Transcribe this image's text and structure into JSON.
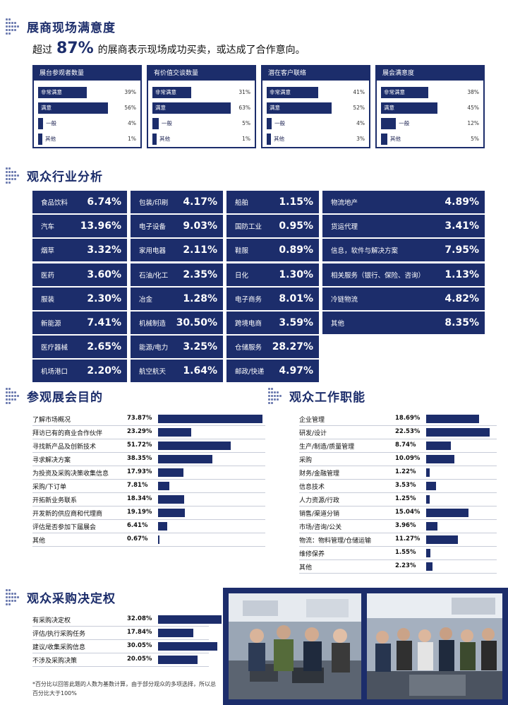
{
  "sections": {
    "satisfaction": "展商现场满意度",
    "industry": "观众行业分析",
    "purpose": "参观展会目的",
    "job": "观众工作职能",
    "decision": "观众采购决定权"
  },
  "subtitle": {
    "pre": "超过",
    "big": "87%",
    "post": "的展商表示现场成功买卖，或达成了合作意向。"
  },
  "satisfaction_boxes": [
    {
      "title": "展台参观者数量",
      "rows": [
        {
          "label": "非常满意",
          "pct": "39%",
          "value": 39
        },
        {
          "label": "满意",
          "pct": "56%",
          "value": 56
        },
        {
          "label": "一般",
          "pct": "4%",
          "value": 4
        },
        {
          "label": "其他",
          "pct": "1%",
          "value": 1
        }
      ]
    },
    {
      "title": "有价值交谈数量",
      "rows": [
        {
          "label": "非常满意",
          "pct": "31%",
          "value": 31
        },
        {
          "label": "满意",
          "pct": "63%",
          "value": 63
        },
        {
          "label": "一般",
          "pct": "5%",
          "value": 5
        },
        {
          "label": "其他",
          "pct": "1%",
          "value": 1
        }
      ]
    },
    {
      "title": "潜在客户联络",
      "rows": [
        {
          "label": "非常满意",
          "pct": "41%",
          "value": 41
        },
        {
          "label": "满意",
          "pct": "52%",
          "value": 52
        },
        {
          "label": "一般",
          "pct": "4%",
          "value": 4
        },
        {
          "label": "其他",
          "pct": "3%",
          "value": 3
        }
      ]
    },
    {
      "title": "展会满意度",
      "rows": [
        {
          "label": "非常满意",
          "pct": "38%",
          "value": 38
        },
        {
          "label": "满意",
          "pct": "45%",
          "value": 45
        },
        {
          "label": "一般",
          "pct": "12%",
          "value": 12
        },
        {
          "label": "其他",
          "pct": "5%",
          "value": 5
        }
      ]
    }
  ],
  "industry_columns": [
    [
      {
        "label": "食品饮料",
        "value": "6.74%"
      },
      {
        "label": "汽车",
        "value": "13.96%"
      },
      {
        "label": "烟草",
        "value": "3.32%"
      },
      {
        "label": "医药",
        "value": "3.60%"
      },
      {
        "label": "服装",
        "value": "2.30%"
      },
      {
        "label": "新能源",
        "value": "7.41%"
      },
      {
        "label": "医疗器械",
        "value": "2.65%"
      },
      {
        "label": "机场港口",
        "value": "2.20%"
      }
    ],
    [
      {
        "label": "包装/印刷",
        "value": "4.17%"
      },
      {
        "label": "电子设备",
        "value": "9.03%"
      },
      {
        "label": "家用电器",
        "value": "2.11%"
      },
      {
        "label": "石油/化工",
        "value": "2.35%"
      },
      {
        "label": "冶金",
        "value": "1.28%"
      },
      {
        "label": "机械制造",
        "value": "30.50%"
      },
      {
        "label": "能源/电力",
        "value": "3.25%"
      },
      {
        "label": "航空航天",
        "value": "1.64%"
      }
    ],
    [
      {
        "label": "船舶",
        "value": "1.15%"
      },
      {
        "label": "国防工业",
        "value": "0.95%"
      },
      {
        "label": "鞋服",
        "value": "0.89%"
      },
      {
        "label": "日化",
        "value": "1.30%"
      },
      {
        "label": "电子商务",
        "value": "8.01%"
      },
      {
        "label": "跨境电商",
        "value": "3.59%"
      },
      {
        "label": "仓储服务",
        "value": "28.27%"
      },
      {
        "label": "邮政/快递",
        "value": "4.97%"
      }
    ],
    [
      {
        "label": "物流地产",
        "value": "4.89%"
      },
      {
        "label": "货运代理",
        "value": "3.41%"
      },
      {
        "label": "信息，软件与解决方案",
        "value": "7.95%"
      },
      {
        "label": "相关服务（银行、保险、咨询）",
        "value": "1.13%"
      },
      {
        "label": "冷链物流",
        "value": "4.82%"
      },
      {
        "label": "其他",
        "value": "8.35%"
      }
    ]
  ],
  "purpose": [
    {
      "label": "了解市场概况",
      "pct": "73.87%",
      "value": 73.87
    },
    {
      "label": "拜访已有的商业合作伙伴",
      "pct": "23.29%",
      "value": 23.29
    },
    {
      "label": "寻找新产品及创新技术",
      "pct": "51.72%",
      "value": 51.72
    },
    {
      "label": "寻求解决方案",
      "pct": "38.35%",
      "value": 38.35
    },
    {
      "label": "为投资及采购决策收集信息",
      "pct": "17.93%",
      "value": 17.93
    },
    {
      "label": "采购/下订单",
      "pct": "7.81%",
      "value": 7.81
    },
    {
      "label": "开拓新业务联系",
      "pct": "18.34%",
      "value": 18.34
    },
    {
      "label": "开发新的供应商和代理商",
      "pct": "19.19%",
      "value": 19.19
    },
    {
      "label": "评估是否参加下届展会",
      "pct": "6.41%",
      "value": 6.41
    },
    {
      "label": "其他",
      "pct": "0.67%",
      "value": 0.67
    }
  ],
  "job": [
    {
      "label": "企业管理",
      "pct": "18.69%",
      "value": 18.69
    },
    {
      "label": "研发/设计",
      "pct": "22.53%",
      "value": 22.53
    },
    {
      "label": "生产/制造/质量管理",
      "pct": "8.74%",
      "value": 8.74
    },
    {
      "label": "采购",
      "pct": "10.09%",
      "value": 10.09
    },
    {
      "label": "财务/金融管理",
      "pct": "1.22%",
      "value": 1.22
    },
    {
      "label": "信息技术",
      "pct": "3.53%",
      "value": 3.53
    },
    {
      "label": "人力资源/行政",
      "pct": "1.25%",
      "value": 1.25
    },
    {
      "label": "销售/渠道分销",
      "pct": "15.04%",
      "value": 15.04
    },
    {
      "label": "市场/咨询/公关",
      "pct": "3.96%",
      "value": 3.96
    },
    {
      "label": "物流：物料管理/仓储运输",
      "pct": "11.27%",
      "value": 11.27
    },
    {
      "label": "维修保养",
      "pct": "1.55%",
      "value": 1.55
    },
    {
      "label": "其他",
      "pct": "2.23%",
      "value": 2.23
    }
  ],
  "decision": [
    {
      "label": "有采购决定权",
      "pct": "32.08%",
      "value": 32.08
    },
    {
      "label": "评估/执行采购任务",
      "pct": "17.84%",
      "value": 17.84
    },
    {
      "label": "建议/收集采购信息",
      "pct": "30.05%",
      "value": 30.05
    },
    {
      "label": "不涉及采购决策",
      "pct": "20.05%",
      "value": 20.05
    }
  ],
  "footnote": "*百分比以回答此题的人数为基数计算，由于部分观众的多项选择，所以总百分比大于100%",
  "colors": {
    "navy": "#1c2d6b",
    "dots": "#6e7cb0",
    "photo_bg": "#1c2d6b"
  }
}
